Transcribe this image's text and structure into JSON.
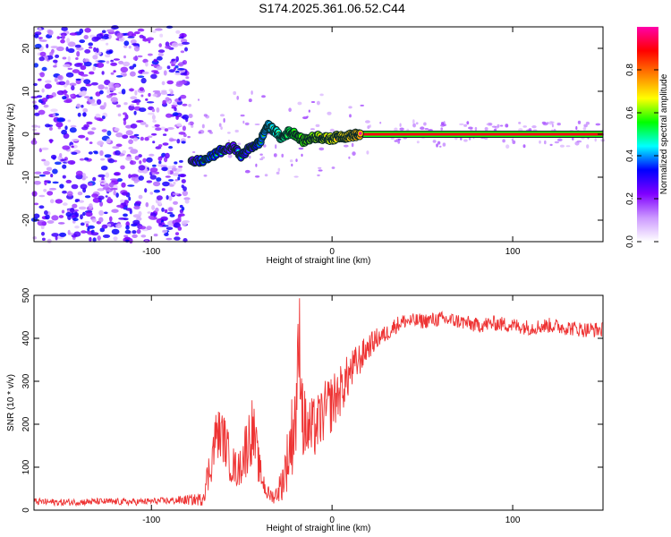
{
  "title": "S174.2025.361.06.52.C44",
  "chart_data": [
    {
      "type": "heatmap",
      "name": "spectrogram",
      "xlabel": "Height of straight line (km)",
      "ylabel": "Frequency (Hz)",
      "xlim": [
        -165,
        150
      ],
      "ylim": [
        -25,
        25
      ],
      "xticks": [
        -100,
        0,
        100
      ],
      "yticks": [
        -20,
        -10,
        0,
        10,
        20
      ],
      "colorbar": {
        "label": "Normalized spectral amplitude",
        "range": [
          0,
          1
        ],
        "ticks": [
          0.0,
          0.2,
          0.4,
          0.6,
          0.8
        ],
        "colors": [
          "#ffffff",
          "#cc99ff",
          "#8000ff",
          "#0000ff",
          "#00ffff",
          "#00ff00",
          "#ffff00",
          "#ff8000",
          "#ff0000",
          "#ff00aa"
        ]
      },
      "noise_region": {
        "x": [
          -165,
          -80
        ],
        "y": [
          -25,
          25
        ],
        "amplitude": [
          0.05,
          0.35
        ]
      },
      "carrier_trace": {
        "x": [
          -78,
          -70,
          -62,
          -55,
          -50,
          -45,
          -40,
          -36,
          -32,
          -28,
          -24,
          -20,
          -16,
          -12,
          -8,
          -4,
          0,
          4,
          8,
          12,
          16,
          20,
          40,
          60,
          80,
          100,
          120,
          150
        ],
        "y": [
          -6.5,
          -6,
          -4,
          -3,
          -5,
          -3,
          -2,
          2,
          1,
          -1,
          0.5,
          0,
          -1.5,
          -1,
          -0.5,
          -1,
          -1,
          -0.5,
          -0.5,
          -0.2,
          0,
          0,
          0,
          0,
          0,
          0,
          0,
          0
        ],
        "amplitude": [
          0.3,
          0.45,
          0.4,
          0.3,
          0.4,
          0.35,
          0.45,
          0.5,
          0.55,
          0.6,
          0.65,
          0.7,
          0.72,
          0.75,
          0.78,
          0.8,
          0.82,
          0.85,
          0.88,
          0.9,
          0.92,
          0.95,
          0.95,
          0.95,
          0.95,
          0.95,
          0.95,
          0.95
        ]
      }
    },
    {
      "type": "line",
      "name": "snr",
      "xlabel": "Height of straight line (km)",
      "ylabel": "SNR (10 * v/v)",
      "xlim": [
        -165,
        150
      ],
      "ylim": [
        0,
        500
      ],
      "xticks": [
        -100,
        0,
        100
      ],
      "yticks": [
        0,
        100,
        200,
        300,
        400,
        500
      ],
      "color": "#ee3333",
      "series": [
        {
          "name": "SNR",
          "x": [
            -165,
            -150,
            -130,
            -110,
            -90,
            -72,
            -68,
            -64,
            -60,
            -56,
            -52,
            -48,
            -44,
            -40,
            -36,
            -32,
            -28,
            -24,
            -20,
            -18,
            -16,
            -12,
            -8,
            -4,
            0,
            5,
            10,
            15,
            20,
            25,
            30,
            35,
            40,
            50,
            60,
            70,
            80,
            90,
            100,
            110,
            120,
            130,
            140,
            150
          ],
          "y": [
            20,
            18,
            20,
            19,
            22,
            25,
            90,
            180,
            170,
            110,
            90,
            140,
            190,
            90,
            40,
            30,
            60,
            130,
            230,
            400,
            200,
            180,
            200,
            230,
            250,
            280,
            320,
            350,
            380,
            400,
            410,
            430,
            440,
            440,
            445,
            440,
            430,
            435,
            430,
            425,
            430,
            425,
            420,
            420
          ],
          "spread": [
            8,
            8,
            8,
            8,
            8,
            15,
            50,
            60,
            60,
            50,
            40,
            70,
            80,
            40,
            20,
            15,
            40,
            80,
            120,
            120,
            90,
            80,
            70,
            70,
            70,
            60,
            50,
            40,
            30,
            25,
            20,
            20,
            18,
            18,
            18,
            18,
            18,
            18,
            18,
            18,
            18,
            18,
            18,
            18
          ]
        }
      ]
    }
  ]
}
